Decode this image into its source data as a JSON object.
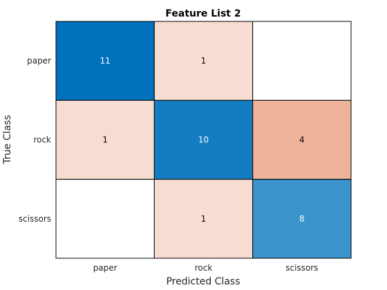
{
  "chart_data": {
    "type": "heatmap",
    "title": "Feature List 2",
    "xlabel": "Predicted Class",
    "ylabel": "True Class",
    "x_categories": [
      "paper",
      "rock",
      "scissors"
    ],
    "y_categories": [
      "paper",
      "rock",
      "scissors"
    ],
    "matrix": [
      [
        11,
        1,
        null
      ],
      [
        1,
        10,
        4
      ],
      [
        null,
        1,
        8
      ]
    ],
    "colors": {
      "diagonal_high": "#0072BD",
      "diagonal_low": "#FFFFFF",
      "offdiag_high": "#D95319",
      "offdiag_low": "#FFFFFF",
      "border": "#000000",
      "text_dark": "#000000",
      "text_light": "#FFFFFF"
    }
  }
}
